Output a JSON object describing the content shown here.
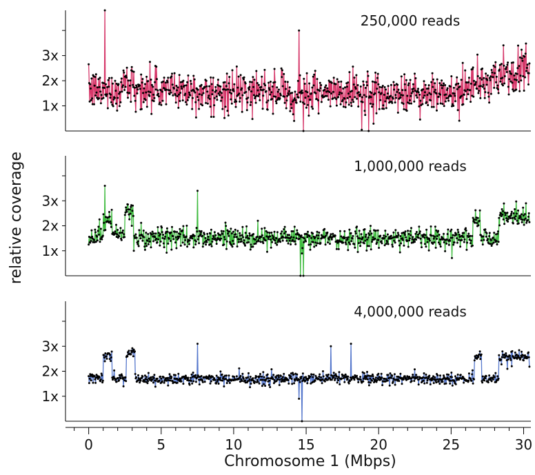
{
  "chart_data": {
    "type": "line",
    "ylabel": "relative coverage",
    "xlabel": "Chromosome 1 (Mbps)",
    "xlim": [
      -1.6,
      30.5
    ],
    "x_ticks": [
      0,
      5,
      10,
      15,
      20,
      25,
      30
    ],
    "x_tick_labels": [
      "0",
      "5",
      "10",
      "15",
      "20",
      "25",
      "30"
    ],
    "y_ticks": [
      1,
      2,
      3
    ],
    "y_tick_labels": [
      "1x",
      "2x",
      "3x"
    ],
    "minor_y_ticks": [
      4
    ],
    "ylim": [
      0,
      4.8
    ],
    "grid": false,
    "point_color": "#000000",
    "panels": [
      {
        "label": "250,000 reads",
        "color": "#d6386a",
        "baseline_segments": [
          {
            "x0": 0.0,
            "x1": 2.2,
            "y": 1.6
          },
          {
            "x0": 2.2,
            "x1": 3.2,
            "y": 1.9
          },
          {
            "x0": 3.2,
            "x1": 7.6,
            "y": 1.65
          },
          {
            "x0": 7.6,
            "x1": 26.0,
            "y": 1.5
          },
          {
            "x0": 26.0,
            "x1": 28.4,
            "y": 1.9
          },
          {
            "x0": 28.4,
            "x1": 30.5,
            "y": 2.3
          }
        ],
        "noise_sd": 0.38,
        "spikes": [
          {
            "x": 1.1,
            "y": 4.8
          },
          {
            "x": 14.5,
            "y": 4.0
          },
          {
            "x": 14.8,
            "y": 0.0
          },
          {
            "x": 19.3,
            "y": 0.0
          }
        ]
      },
      {
        "label": "1,000,000 reads",
        "color": "#3fbb3f",
        "baseline_segments": [
          {
            "x0": 0.0,
            "x1": 1.0,
            "y": 1.55
          },
          {
            "x0": 1.0,
            "x1": 1.6,
            "y": 2.3
          },
          {
            "x0": 1.6,
            "x1": 2.5,
            "y": 1.7
          },
          {
            "x0": 2.5,
            "x1": 3.1,
            "y": 2.5
          },
          {
            "x0": 3.1,
            "x1": 26.5,
            "y": 1.5
          },
          {
            "x0": 26.5,
            "x1": 27.0,
            "y": 2.3
          },
          {
            "x0": 27.0,
            "x1": 28.3,
            "y": 1.5
          },
          {
            "x0": 28.3,
            "x1": 30.5,
            "y": 2.4
          }
        ],
        "noise_sd": 0.2,
        "spikes": [
          {
            "x": 1.1,
            "y": 3.6
          },
          {
            "x": 7.5,
            "y": 3.4
          },
          {
            "x": 14.6,
            "y": 0.0
          },
          {
            "x": 14.8,
            "y": 0.0
          }
        ]
      },
      {
        "label": "4,000,000 reads",
        "color": "#5577cc",
        "baseline_segments": [
          {
            "x0": 0.0,
            "x1": 1.0,
            "y": 1.7
          },
          {
            "x0": 1.0,
            "x1": 1.6,
            "y": 2.6
          },
          {
            "x0": 1.6,
            "x1": 2.6,
            "y": 1.7
          },
          {
            "x0": 2.6,
            "x1": 3.2,
            "y": 2.7
          },
          {
            "x0": 3.2,
            "x1": 26.6,
            "y": 1.7
          },
          {
            "x0": 26.6,
            "x1": 27.1,
            "y": 2.6
          },
          {
            "x0": 27.1,
            "x1": 28.3,
            "y": 1.7
          },
          {
            "x0": 28.3,
            "x1": 30.5,
            "y": 2.6
          }
        ],
        "noise_sd": 0.11,
        "spikes": [
          {
            "x": 7.5,
            "y": 3.1
          },
          {
            "x": 14.5,
            "y": 0.9
          },
          {
            "x": 14.7,
            "y": 0.0
          },
          {
            "x": 16.7,
            "y": 3.0
          },
          {
            "x": 18.1,
            "y": 3.1
          }
        ]
      }
    ]
  }
}
